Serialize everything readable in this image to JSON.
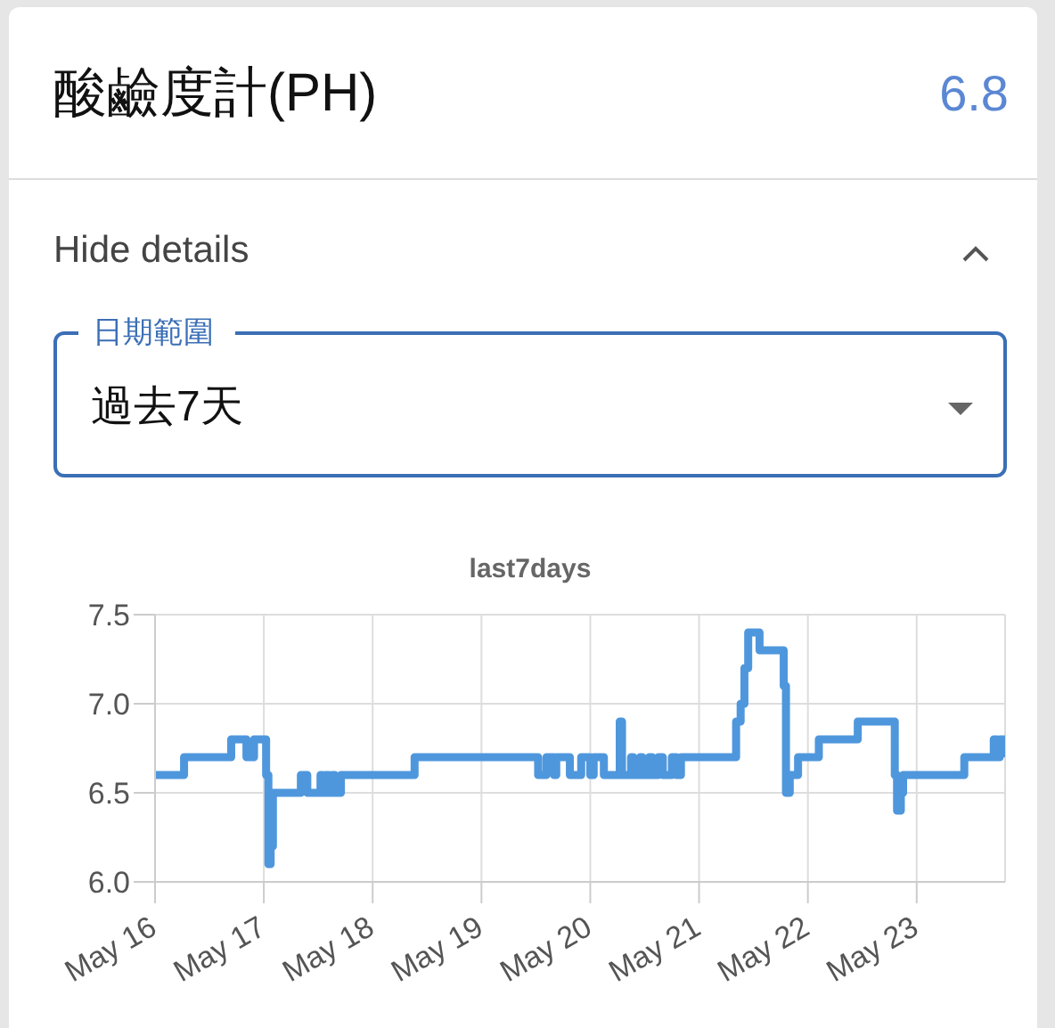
{
  "chart_data": {
    "type": "step",
    "title": "last7days",
    "annotations": [
      "酸鹼度計(PH)",
      "6.8",
      "Hide details",
      "日期範圍",
      "過去7天"
    ],
    "x": [
      "--05-16T00:00",
      "--05-16T06:24",
      "--05-16T16:48",
      "--05-16T20:10",
      "--05-16T21:50",
      "--05-17T00:30",
      "--05-17T01:00",
      "--05-17T01:30",
      "--05-17T02:00",
      "--05-17T08:10",
      "--05-17T09:35",
      "--05-17T12:30",
      "--05-17T13:00",
      "--05-17T13:40",
      "--05-17T14:20",
      "--05-17T15:00",
      "--05-17T15:40",
      "--05-17T17:00",
      "--05-18T09:15",
      "--05-19T12:30",
      "--05-19T14:20",
      "--05-19T16:00",
      "--05-19T16:30",
      "--05-19T19:30",
      "--05-19T22:00",
      "--05-20T00:00",
      "--05-20T00:45",
      "--05-20T03:00",
      "--05-20T06:30",
      "--05-20T07:00",
      "--05-20T09:00",
      "--05-20T09:30",
      "--05-20T11:00",
      "--05-20T11:30",
      "--05-20T13:00",
      "--05-20T13:40",
      "--05-20T15:00",
      "--05-20T16:00",
      "--05-20T18:00",
      "--05-20T19:00",
      "--05-20T20:00",
      "--05-21T08:10",
      "--05-21T09:10",
      "--05-21T10:00",
      "--05-21T10:50",
      "--05-21T13:20",
      "--05-21T18:40",
      "--05-21T19:10",
      "--05-21T20:00",
      "--05-21T21:50",
      "--05-22T02:25",
      "--05-22T11:00",
      "--05-22T19:10",
      "--05-22T19:40",
      "--05-22T20:30",
      "--05-22T21:00",
      "--05-23T10:30",
      "--05-23T17:00",
      "--05-23T17:40",
      "--05-23T18:20",
      "--05-23T19:30"
    ],
    "values": [
      6.6,
      6.7,
      6.8,
      6.7,
      6.8,
      6.6,
      6.1,
      6.2,
      6.5,
      6.6,
      6.5,
      6.6,
      6.5,
      6.6,
      6.5,
      6.6,
      6.5,
      6.6,
      6.7,
      6.6,
      6.7,
      6.6,
      6.7,
      6.6,
      6.7,
      6.6,
      6.7,
      6.6,
      6.9,
      6.6,
      6.7,
      6.6,
      6.7,
      6.6,
      6.7,
      6.6,
      6.7,
      6.6,
      6.7,
      6.6,
      6.7,
      6.9,
      7.0,
      7.2,
      7.4,
      7.3,
      7.1,
      6.5,
      6.6,
      6.7,
      6.8,
      6.9,
      6.6,
      6.4,
      6.5,
      6.6,
      6.7,
      6.8,
      6.7,
      6.8,
      6.7
    ],
    "color": "#4f97dd",
    "xlim": [
      "--05-16T00:00",
      "--05-23T19:30"
    ],
    "xticks": [
      {
        "value": "--05-16",
        "label": "May 16"
      },
      {
        "value": "--05-17",
        "label": "May 17"
      },
      {
        "value": "--05-18",
        "label": "May 18"
      },
      {
        "value": "--05-19",
        "label": "May 19"
      },
      {
        "value": "--05-20",
        "label": "May 20"
      },
      {
        "value": "--05-21",
        "label": "May 21"
      },
      {
        "value": "--05-22",
        "label": "May 22"
      },
      {
        "value": "--05-23",
        "label": "May 23"
      }
    ],
    "ylim": [
      6.0,
      7.5
    ],
    "yticks": [
      {
        "value": 6.0,
        "label": "6.0"
      },
      {
        "value": 6.5,
        "label": "6.5"
      },
      {
        "value": 7.0,
        "label": "7.0"
      },
      {
        "value": 7.5,
        "label": "7.5"
      }
    ],
    "grid": true
  }
}
